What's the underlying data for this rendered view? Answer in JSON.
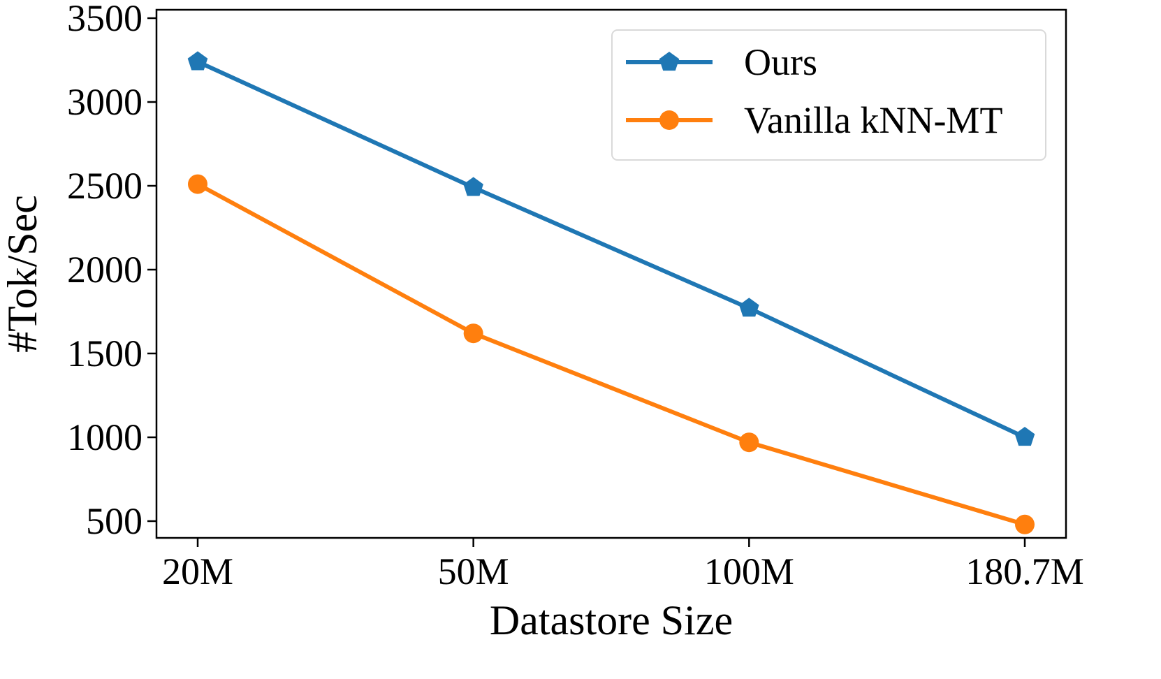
{
  "chart_data": {
    "type": "line",
    "title": "",
    "xlabel": "Datastore Size",
    "ylabel": "#Tok/Sec",
    "categories": [
      "20M",
      "50M",
      "100M",
      "180.7M"
    ],
    "ylim": [
      400,
      3550
    ],
    "yticks": [
      500,
      1000,
      1500,
      2000,
      2500,
      3000,
      3500
    ],
    "grid": false,
    "legend_position": "top-right",
    "series": [
      {
        "name": "Ours",
        "marker": "pentagon",
        "color": "#1f77b4",
        "values": [
          3240,
          2490,
          1770,
          1000
        ]
      },
      {
        "name": "Vanilla kNN-MT",
        "marker": "circle",
        "color": "#ff7f0e",
        "values": [
          2510,
          1620,
          970,
          480
        ]
      }
    ]
  }
}
